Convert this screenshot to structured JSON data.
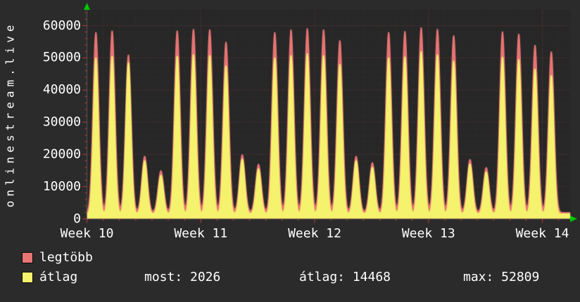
{
  "brand": "onlinestream.live",
  "colors": {
    "background": "#2b2b2b",
    "plot_bg": "#272727",
    "text": "#ffffff",
    "grid_major": "#7a3a3a",
    "grid_minor": "#3c3131",
    "axis": "#555555",
    "tick": "#cc3b3b",
    "arrow": "#00cc00"
  },
  "chart_data": {
    "type": "area",
    "title": "",
    "xlabel": "",
    "ylabel": "",
    "x_ticks": [
      "Week 10",
      "Week 11",
      "Week 12",
      "Week 13",
      "Week 14"
    ],
    "y_ticks": [
      0,
      10000,
      20000,
      30000,
      40000,
      50000,
      60000
    ],
    "ylim": [
      0,
      65000
    ],
    "grid": true,
    "legend_position": "bottom-left",
    "days_per_tick": 7,
    "x_range_days": 29.73,
    "base_value_max": 1900,
    "base_value_avg": 1500,
    "series": [
      {
        "name": "legtöbb",
        "color": "#e87474",
        "daily_peaks": [
          56000,
          56500,
          49000,
          17500,
          13000,
          56500,
          57000,
          56800,
          53000,
          18000,
          15000,
          56000,
          56800,
          57200,
          56800,
          53500,
          17500,
          15500,
          56000,
          56300,
          57500,
          57000,
          55000,
          16500,
          14000,
          56200,
          55500,
          52000,
          50000
        ]
      },
      {
        "name": "átlag",
        "color": "#f5f26d",
        "daily_peaks": [
          48500,
          49000,
          47000,
          16500,
          12000,
          49000,
          49500,
          49200,
          46000,
          17000,
          14000,
          48500,
          49200,
          49800,
          49200,
          46500,
          16500,
          14500,
          48500,
          48800,
          50500,
          49500,
          47500,
          15500,
          13000,
          48700,
          48000,
          45000,
          43000
        ]
      }
    ]
  },
  "legend": [
    {
      "label": "legtöbb",
      "color": "#e87474"
    },
    {
      "label": "átlag",
      "color": "#f5f26d"
    }
  ],
  "stats": [
    {
      "label": "most:",
      "value": "2026"
    },
    {
      "label": "átlag:",
      "value": "14468"
    },
    {
      "label": "max:",
      "value": "52809"
    }
  ]
}
